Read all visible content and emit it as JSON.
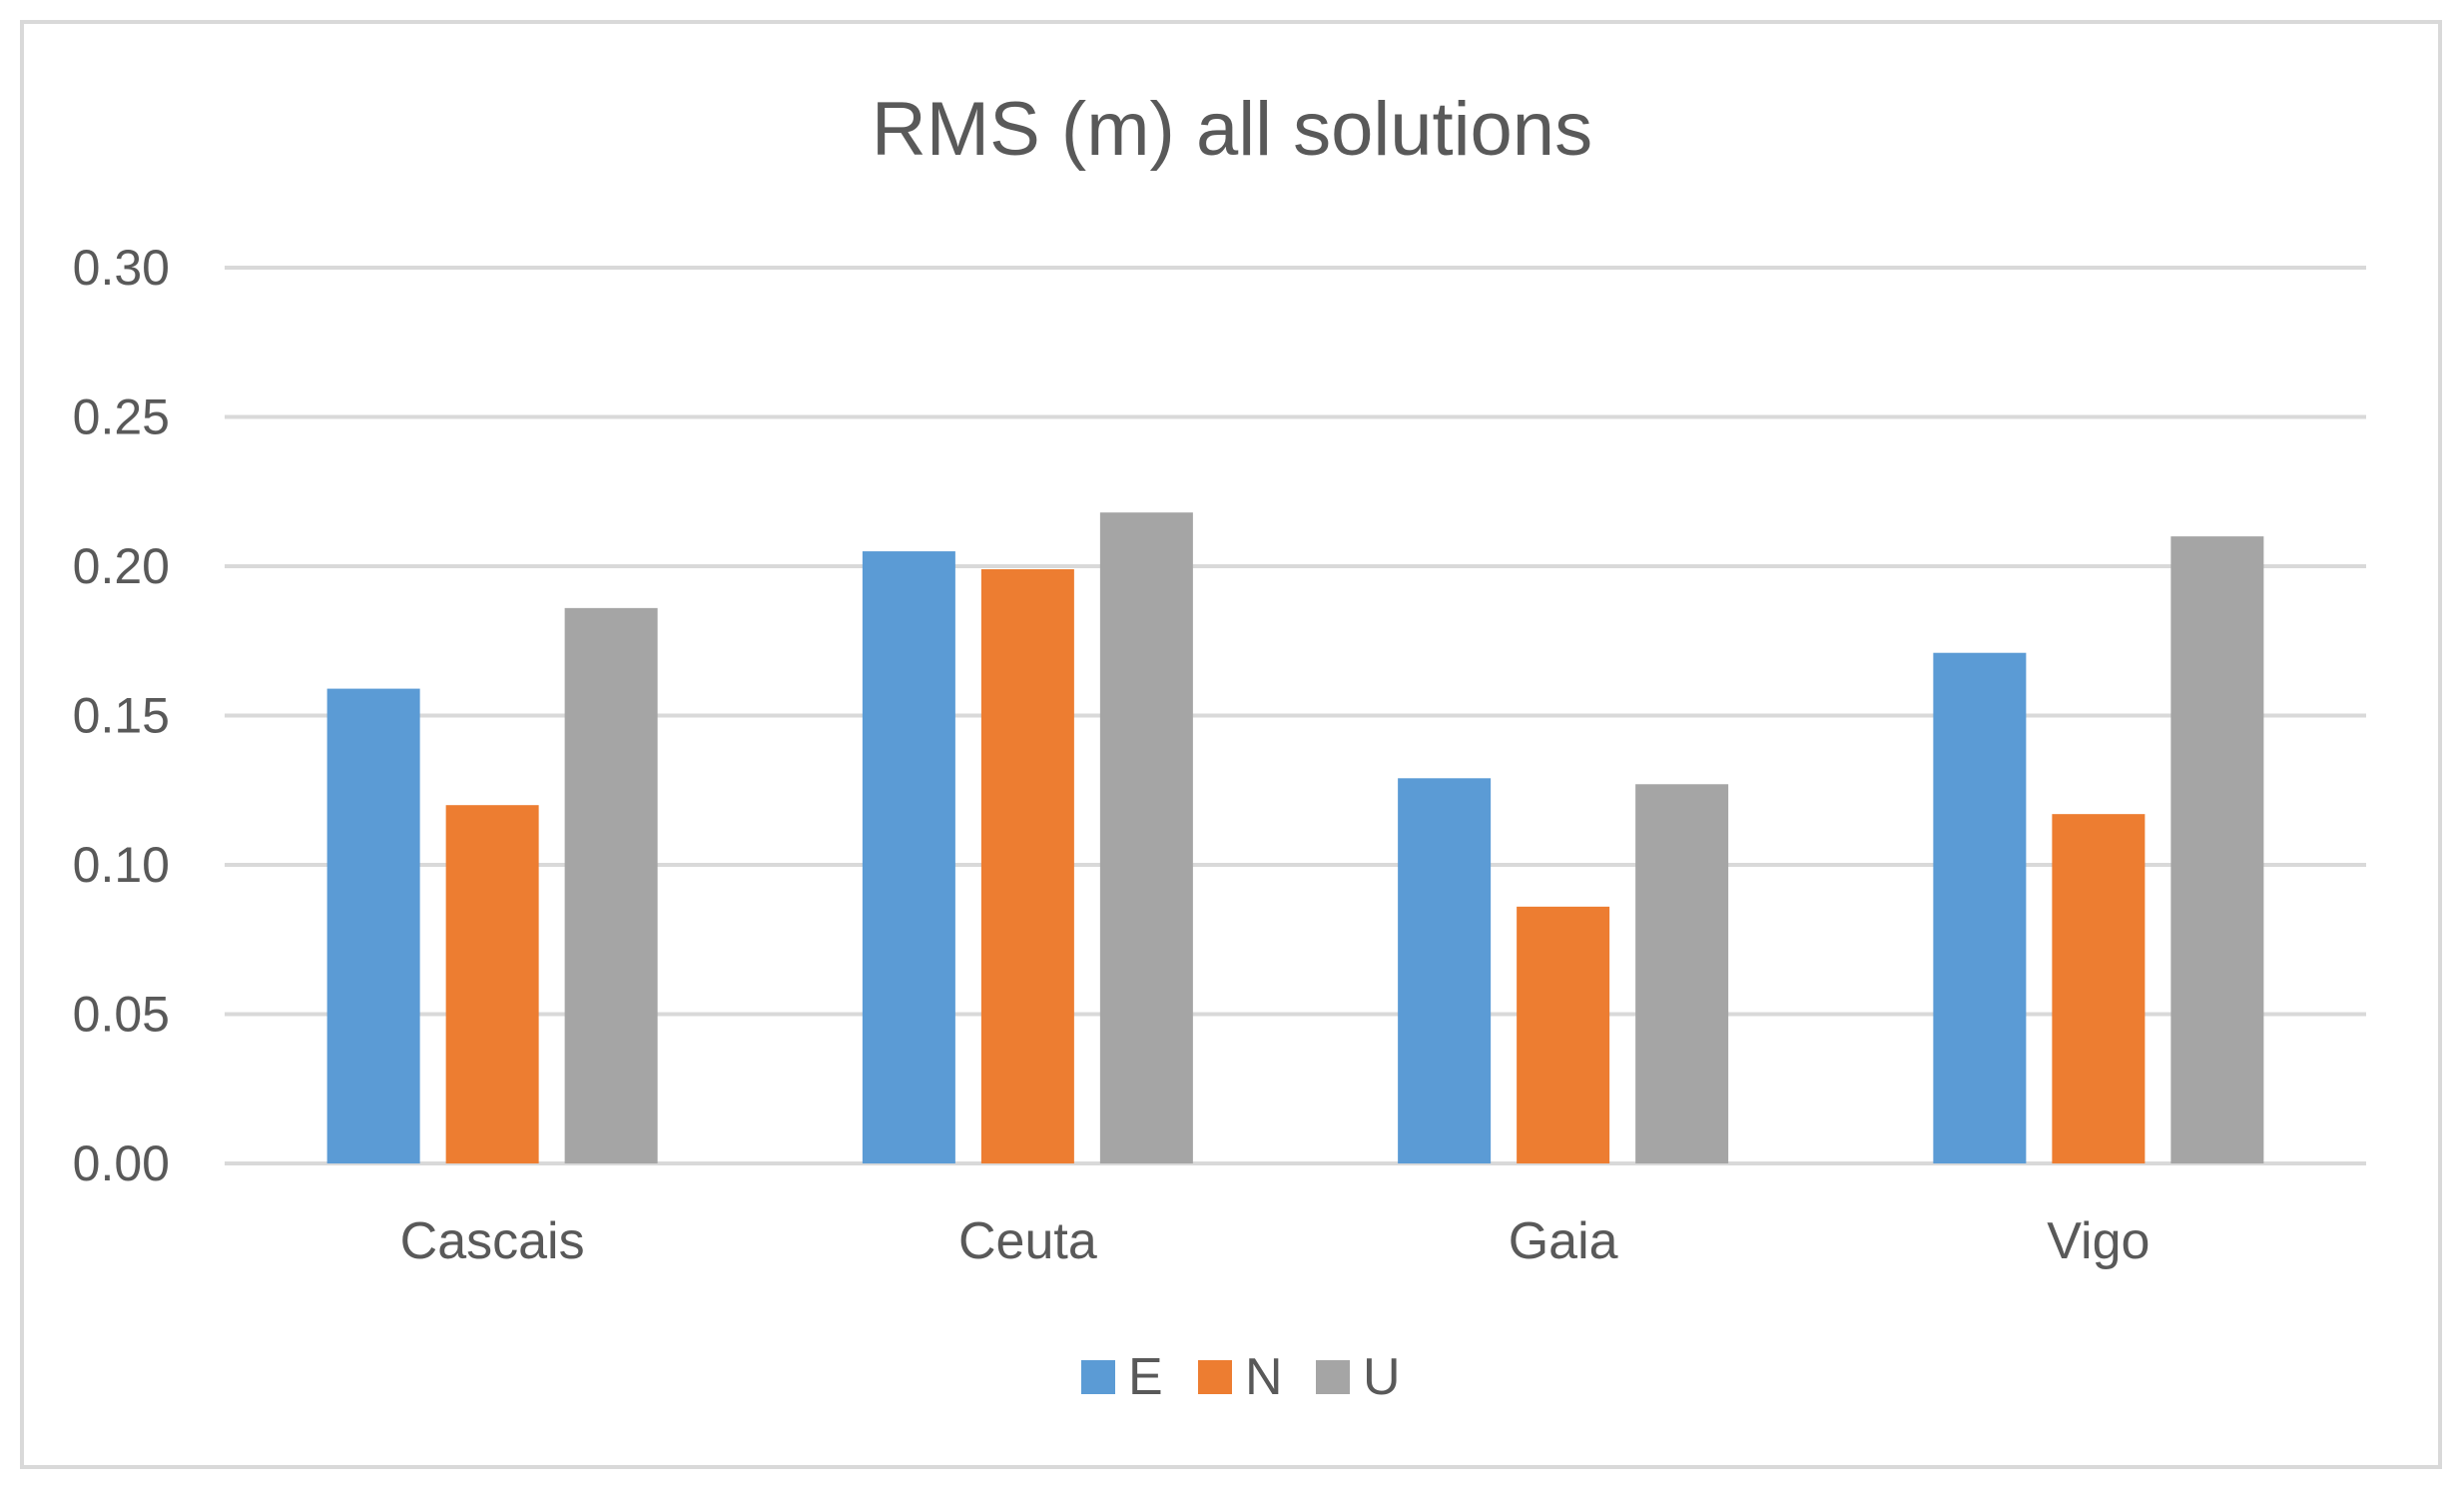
{
  "chart_data": {
    "type": "bar",
    "title": "RMS (m) all solutions",
    "xlabel": "",
    "ylabel": "",
    "categories": [
      "Cascais",
      "Ceuta",
      "Gaia",
      "Vigo"
    ],
    "series": [
      {
        "name": "E",
        "color": "#5b9bd5",
        "values": [
          0.159,
          0.205,
          0.129,
          0.171
        ]
      },
      {
        "name": "N",
        "color": "#ed7d31",
        "values": [
          0.12,
          0.199,
          0.086,
          0.117
        ]
      },
      {
        "name": "U",
        "color": "#a5a5a5",
        "values": [
          0.186,
          0.218,
          0.127,
          0.21
        ]
      }
    ],
    "ylim": [
      0,
      0.3
    ],
    "yticks": [
      "0.00",
      "0.05",
      "0.10",
      "0.15",
      "0.20",
      "0.25",
      "0.30"
    ],
    "grid": true,
    "legend_position": "bottom"
  }
}
